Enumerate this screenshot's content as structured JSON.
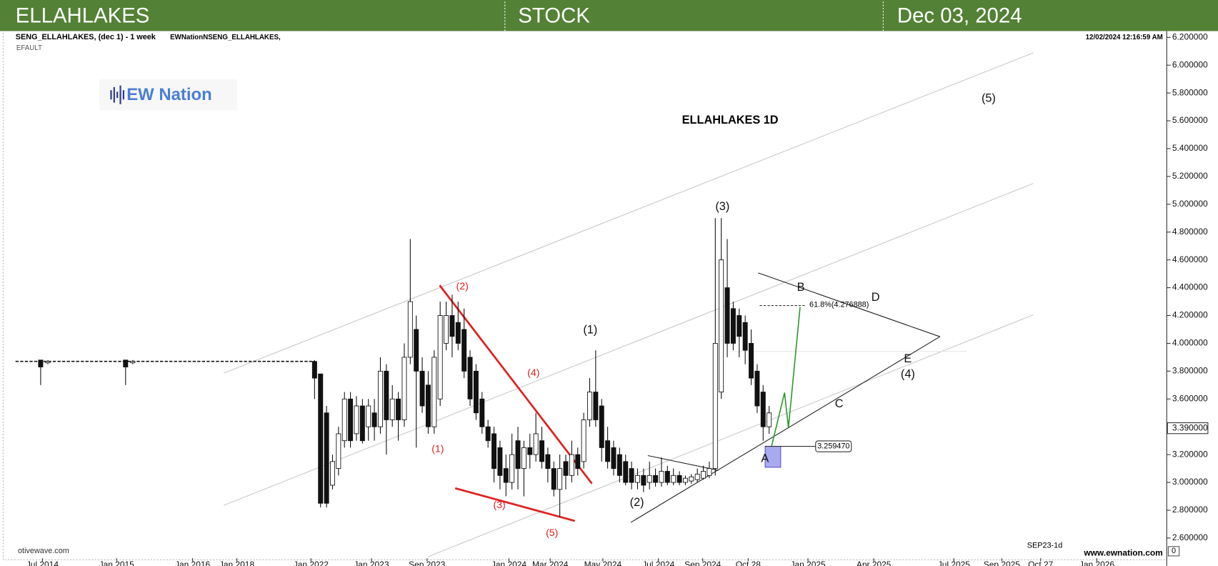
{
  "header": {
    "left": "ELLAHLAKES",
    "center": "STOCK",
    "right": "Dec 03, 2024"
  },
  "chart_data": {
    "type": "candlestick",
    "instrument": "SENG_ELLAHLAKES, (dec 1) - 1 week",
    "study": "EWNationNSENG_ELLAHLAKES,",
    "layout_name": "EFAULT",
    "timestamp": "12/02/2024 12:16:59 AM",
    "logo": "EW Nation",
    "title": "ELLAHLAKES 1D",
    "source": "otivewave.com",
    "footer_code": "SEP23-1d",
    "website": "www.ewnation.com",
    "corner_label": "0",
    "xlim": [
      0,
      193
    ],
    "ylim": [
      2.455,
      6.245
    ],
    "yticks": [
      {
        "value": 6.2,
        "label": "6.200000"
      },
      {
        "value": 6.0,
        "label": "6.000000"
      },
      {
        "value": 5.8,
        "label": "5.800000"
      },
      {
        "value": 5.6,
        "label": "5.600000"
      },
      {
        "value": 5.4,
        "label": "5.400000"
      },
      {
        "value": 5.2,
        "label": "5.200000"
      },
      {
        "value": 5.0,
        "label": "5.000000"
      },
      {
        "value": 4.8,
        "label": "4.800000"
      },
      {
        "value": 4.6,
        "label": "4.600000"
      },
      {
        "value": 4.4,
        "label": "4.400000"
      },
      {
        "value": 4.2,
        "label": "4.200000"
      },
      {
        "value": 4.0,
        "label": "4.000000"
      },
      {
        "value": 3.8,
        "label": "3.800000"
      },
      {
        "value": 3.6,
        "label": "3.600000"
      },
      {
        "value": 3.2,
        "label": "3.200000"
      },
      {
        "value": 3.0,
        "label": "3.000000"
      },
      {
        "value": 2.8,
        "label": "2.800000"
      },
      {
        "value": 2.6,
        "label": "2.600000"
      }
    ],
    "xticks": [
      {
        "value": 4.5,
        "label": "Jul 2014"
      },
      {
        "value": 16.9,
        "label": "Jan 2015"
      },
      {
        "value": 29.6,
        "label": "Jan 2016"
      },
      {
        "value": 37,
        "label": "Jan 2018"
      },
      {
        "value": 49.4,
        "label": "Jan 2022"
      },
      {
        "value": 59.5,
        "label": "Jan 2023"
      },
      {
        "value": 68.8,
        "label": "Sep 2023"
      },
      {
        "value": 82.5,
        "label": "Jan 2024"
      },
      {
        "value": 89.4,
        "label": "Mar 2024"
      },
      {
        "value": 98.2,
        "label": "May 2024"
      },
      {
        "value": 107.5,
        "label": "Jul 2024"
      },
      {
        "value": 114.9,
        "label": "Sep 2024"
      },
      {
        "value": 122.5,
        "label": "Oct 28"
      },
      {
        "value": 132.5,
        "label": "Jan 2025"
      },
      {
        "value": 143.5,
        "label": "Apr 2025"
      },
      {
        "value": 156.9,
        "label": "Jul 2025"
      },
      {
        "value": 164.9,
        "label": "Sep 2025"
      },
      {
        "value": 171.4,
        "label": "Oct 27"
      },
      {
        "value": 180.8,
        "label": "Jan 2026"
      }
    ],
    "last_price": {
      "value": 3.39,
      "label": "3.390000"
    },
    "flat_line": {
      "x": [
        0,
        50
      ],
      "values": [
        3.87,
        3.87
      ]
    },
    "x": [
      4.2,
      5.4,
      18.4,
      19.6,
      50,
      51,
      52,
      53,
      54,
      55,
      56,
      57,
      58,
      59,
      60,
      61,
      62,
      63,
      64,
      65,
      66,
      67,
      68,
      69,
      70,
      71,
      72,
      73,
      74,
      75,
      76,
      77,
      78,
      79,
      80,
      81,
      82,
      83,
      84,
      85,
      86,
      87,
      88,
      89,
      90,
      91,
      92,
      93,
      94,
      95,
      96,
      97,
      98,
      99,
      100,
      101,
      102,
      103,
      104,
      105,
      106,
      107,
      108,
      109,
      110,
      111,
      112,
      113,
      114,
      115,
      116,
      117,
      118,
      119,
      120,
      121,
      122,
      123,
      124,
      125,
      126
    ],
    "open": [
      3.88,
      3.86,
      3.88,
      3.86,
      3.87,
      3.78,
      3.5,
      2.98,
      3.1,
      3.3,
      3.6,
      3.35,
      3.55,
      3.4,
      3.5,
      3.4,
      3.8,
      3.45,
      3.6,
      3.45,
      3.9,
      4.1,
      3.8,
      3.7,
      3.4,
      3.6,
      4.0,
      4.2,
      4.15,
      4.1,
      3.9,
      3.8,
      3.6,
      3.4,
      3.35,
      3.25,
      3.1,
      3.0,
      3.3,
      3.1,
      3.25,
      3.2,
      3.3,
      3.2,
      3.1,
      2.95,
      3.15,
      3.05,
      3.2,
      3.15,
      3.45,
      3.65,
      3.55,
      3.3,
      3.25,
      3.2,
      3.15,
      3.1,
      3.0,
      3.05,
      3.0,
      3.05,
      3.0,
      3.08,
      3.0,
      3.05,
      3.0,
      3.01,
      3.02,
      3.03,
      3.05,
      3.1,
      3.65,
      4.4,
      4.25,
      4.2,
      4.15,
      4.0,
      3.8,
      3.65,
      3.4
    ],
    "high": [
      3.88,
      3.88,
      3.88,
      3.88,
      3.88,
      3.78,
      3.55,
      3.2,
      3.4,
      3.65,
      3.65,
      3.62,
      3.6,
      3.6,
      3.6,
      3.9,
      3.85,
      3.7,
      3.65,
      4.0,
      4.75,
      4.2,
      3.9,
      3.8,
      3.95,
      4.3,
      4.3,
      4.35,
      4.3,
      4.25,
      3.95,
      3.85,
      3.65,
      3.45,
      3.4,
      3.3,
      3.2,
      3.35,
      3.4,
      3.3,
      3.35,
      3.5,
      3.4,
      3.25,
      3.15,
      3.2,
      3.2,
      3.3,
      3.25,
      3.5,
      3.75,
      3.95,
      3.6,
      3.4,
      3.3,
      3.25,
      3.2,
      3.15,
      3.1,
      3.1,
      3.15,
      3.1,
      3.18,
      3.12,
      3.1,
      3.08,
      3.05,
      3.06,
      3.1,
      3.12,
      3.15,
      4.9,
      4.9,
      4.75,
      4.3,
      4.25,
      4.2,
      4.1,
      3.85,
      3.7,
      3.55
    ],
    "low": [
      3.7,
      3.85,
      3.7,
      3.85,
      3.6,
      2.82,
      2.82,
      2.95,
      3.05,
      3.25,
      3.25,
      3.3,
      3.28,
      3.3,
      3.3,
      3.35,
      3.2,
      3.4,
      3.3,
      3.4,
      3.85,
      3.25,
      3.5,
      3.35,
      3.35,
      3.55,
      3.95,
      3.9,
      3.95,
      3.75,
      3.55,
      3.45,
      3.35,
      3.25,
      3.0,
      2.95,
      2.9,
      2.95,
      2.95,
      2.9,
      3.1,
      3.15,
      3.1,
      3.0,
      2.9,
      2.75,
      2.95,
      3.0,
      3.05,
      3.1,
      3.4,
      3.4,
      3.15,
      3.1,
      3.05,
      3.0,
      2.98,
      2.95,
      2.95,
      2.93,
      2.95,
      2.97,
      2.97,
      2.98,
      2.98,
      2.98,
      2.98,
      2.99,
      3.0,
      3.02,
      3.03,
      3.05,
      3.6,
      3.9,
      3.95,
      3.9,
      3.85,
      3.7,
      3.5,
      3.3,
      3.35
    ],
    "close": [
      3.83,
      3.87,
      3.83,
      3.87,
      3.75,
      2.85,
      2.85,
      3.15,
      3.35,
      3.6,
      3.3,
      3.55,
      3.3,
      3.55,
      3.4,
      3.8,
      3.45,
      3.6,
      3.45,
      3.9,
      4.3,
      3.8,
      3.55,
      3.4,
      3.9,
      4.2,
      4.2,
      4.05,
      4.0,
      3.8,
      3.6,
      3.5,
      3.4,
      3.3,
      3.1,
      3.05,
      3.0,
      3.2,
      3.1,
      3.25,
      3.2,
      3.35,
      3.15,
      3.1,
      2.95,
      3.1,
      3.05,
      3.2,
      3.1,
      3.45,
      3.65,
      3.45,
      3.25,
      3.15,
      3.1,
      3.05,
      3.0,
      3.0,
      3.05,
      2.98,
      3.05,
      3.0,
      3.08,
      3.0,
      3.05,
      3.0,
      3.03,
      3.04,
      3.06,
      3.08,
      3.1,
      4.0,
      4.6,
      4.0,
      4.0,
      4.05,
      3.95,
      3.75,
      3.55,
      3.4,
      3.5
    ],
    "annotations": [
      {
        "text": "(2)",
        "x": 74.7,
        "y": 4.406,
        "color": "#e02020"
      },
      {
        "text": "(1)",
        "x": 70.6,
        "y": 3.237,
        "color": "#e02020"
      },
      {
        "text": "(4)",
        "x": 86.6,
        "y": 3.785,
        "color": "#e02020"
      },
      {
        "text": "(3)",
        "x": 80.9,
        "y": 2.835,
        "color": "#e02020"
      },
      {
        "text": "(5)",
        "x": 89.7,
        "y": 2.634,
        "color": "#e02020"
      },
      {
        "text": "(1)",
        "x": 96.1,
        "y": 4.093,
        "color": "#111111"
      },
      {
        "text": "(2)",
        "x": 103.9,
        "y": 2.852,
        "color": "#111111"
      },
      {
        "text": "(3)",
        "x": 118.2,
        "y": 4.981,
        "color": "#111111"
      },
      {
        "text": "(4)",
        "x": 149.2,
        "y": 3.774,
        "color": "#111111"
      },
      {
        "text": "(5)",
        "x": 162.7,
        "y": 5.758,
        "color": "#111111"
      },
      {
        "text": "A",
        "x": 125.3,
        "y": 3.17,
        "color": "#111111"
      },
      {
        "text": "B",
        "x": 131.3,
        "y": 4.4,
        "color": "#111111"
      },
      {
        "text": "C",
        "x": 137.7,
        "y": 3.562,
        "color": "#111111"
      },
      {
        "text": "D",
        "x": 143.8,
        "y": 4.327,
        "color": "#111111"
      },
      {
        "text": "E",
        "x": 149.2,
        "y": 3.886,
        "color": "#111111"
      }
    ],
    "fib_label": {
      "text": "61.8%(4.276888)",
      "value": 4.276888
    },
    "price_box": {
      "label": "3.259470",
      "value": 3.25947
    }
  }
}
